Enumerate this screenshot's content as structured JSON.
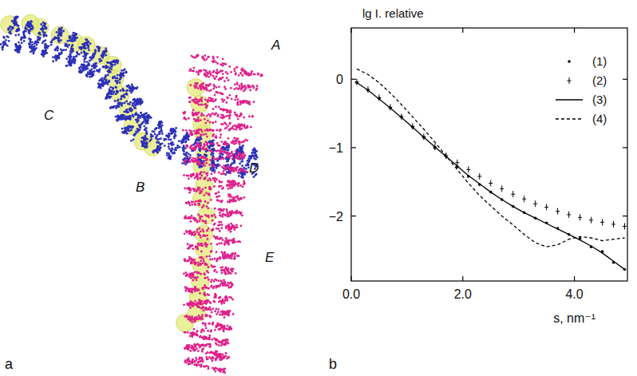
{
  "figure": {
    "panel_labels": [
      "a",
      "b"
    ],
    "labels": [
      "A",
      "B",
      "C",
      "D",
      "E"
    ]
  },
  "chart_data": {
    "type": "scatter",
    "y_label": "lg I. relative",
    "x_label": "s, nm⁻¹",
    "x": [
      0.1,
      0.3,
      0.5,
      0.7,
      0.9,
      1.1,
      1.3,
      1.5,
      1.7,
      1.9,
      2.1,
      2.3,
      2.5,
      2.7,
      2.9,
      3.1,
      3.3,
      3.5,
      3.7,
      3.9,
      4.1,
      4.3,
      4.5,
      4.7,
      4.9
    ],
    "series": [
      {
        "name": "(1)",
        "type": "scatter",
        "marker": "dot",
        "color": "#000000",
        "values": [
          -0.05,
          -0.16,
          -0.28,
          -0.42,
          -0.55,
          -0.7,
          -0.85,
          -1.0,
          -1.13,
          -1.28,
          -1.42,
          -1.54,
          -1.65,
          -1.76,
          -1.86,
          -1.95,
          -2.03,
          -2.1,
          -2.18,
          -2.27,
          -2.33,
          -2.45,
          -2.52,
          -2.68,
          -2.78
        ]
      },
      {
        "name": "(2)",
        "type": "scatter",
        "marker": "plus",
        "color": "#000000",
        "values": [
          -0.04,
          -0.15,
          -0.27,
          -0.41,
          -0.55,
          -0.69,
          -0.84,
          -0.99,
          -1.12,
          -1.22,
          -1.32,
          -1.42,
          -1.52,
          -1.6,
          -1.68,
          -1.75,
          -1.82,
          -1.87,
          -1.93,
          -1.98,
          -2.02,
          -2.06,
          -2.09,
          -2.12,
          -2.15
        ]
      },
      {
        "name": "(3)",
        "type": "line",
        "line_style": "solid",
        "color": "#000000",
        "values": [
          -0.05,
          -0.16,
          -0.29,
          -0.42,
          -0.56,
          -0.7,
          -0.85,
          -0.99,
          -1.13,
          -1.27,
          -1.41,
          -1.53,
          -1.65,
          -1.76,
          -1.86,
          -1.95,
          -2.03,
          -2.11,
          -2.19,
          -2.27,
          -2.35,
          -2.44,
          -2.54,
          -2.66,
          -2.78
        ]
      },
      {
        "name": "(4)",
        "type": "line",
        "line_style": "dashed",
        "color": "#000000",
        "values": [
          0.15,
          0.07,
          -0.05,
          -0.2,
          -0.37,
          -0.55,
          -0.73,
          -0.92,
          -1.12,
          -1.32,
          -1.52,
          -1.7,
          -1.85,
          -2.0,
          -2.13,
          -2.27,
          -2.39,
          -2.45,
          -2.42,
          -2.34,
          -2.3,
          -2.32,
          -2.36,
          -2.34,
          -2.32
        ]
      }
    ],
    "xlim": [
      0,
      4.95
    ],
    "ylim": [
      -2.95,
      0.75
    ],
    "xticks": [
      {
        "value": 0,
        "label": "0.0"
      },
      {
        "value": 2,
        "label": "2.0"
      },
      {
        "value": 4,
        "label": "4.0"
      }
    ],
    "yticks": [
      0,
      {
        "value": -1,
        "label": "−1"
      },
      {
        "value": -2,
        "label": "−2"
      }
    ],
    "legend": "upper right",
    "grid": false
  }
}
